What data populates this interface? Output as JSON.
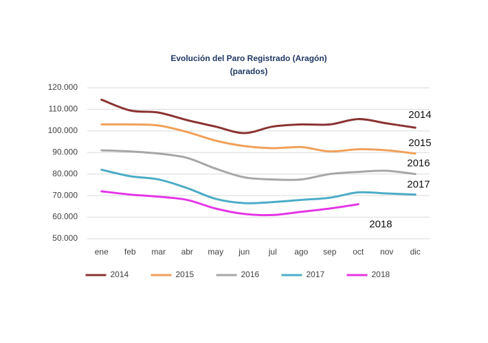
{
  "chart_data": {
    "type": "line",
    "title": "Evolución del Paro Registrado (Aragón)",
    "subtitle": "(parados)",
    "categories": [
      "ene",
      "feb",
      "mar",
      "abr",
      "may",
      "jun",
      "jul",
      "ago",
      "sep",
      "oct",
      "nov",
      "dic"
    ],
    "series": [
      {
        "name": "2014",
        "color": "#8b3232",
        "values": [
          114500,
          109500,
          108500,
          105000,
          102000,
          99000,
          102000,
          103000,
          103000,
          105500,
          103500,
          101500
        ]
      },
      {
        "name": "2015",
        "color": "#f0a05a",
        "values": [
          103000,
          103000,
          102500,
          99500,
          95500,
          93000,
          92000,
          92500,
          90500,
          91500,
          91000,
          89500
        ]
      },
      {
        "name": "2016",
        "color": "#a6a6a6",
        "values": [
          91000,
          90500,
          89500,
          87500,
          82500,
          78500,
          77500,
          77500,
          80000,
          81000,
          81500,
          80000
        ]
      },
      {
        "name": "2017",
        "color": "#4bacc6",
        "values": [
          82000,
          79000,
          77500,
          73500,
          68500,
          66500,
          67000,
          68000,
          69000,
          71500,
          71000,
          70500
        ]
      },
      {
        "name": "2018",
        "color": "#e535e5",
        "values": [
          72000,
          70500,
          69500,
          68000,
          64000,
          61500,
          61000,
          62500,
          64000,
          66000,
          null,
          null
        ]
      }
    ],
    "ylim": [
      50000,
      120000
    ],
    "yticks": [
      {
        "value": 50000,
        "label": "50.000"
      },
      {
        "value": 60000,
        "label": "60.000"
      },
      {
        "value": 70000,
        "label": "70.000"
      },
      {
        "value": 80000,
        "label": "80.000"
      },
      {
        "value": 90000,
        "label": "90.000"
      },
      {
        "value": 100000,
        "label": "100.000"
      },
      {
        "value": 110000,
        "label": "110.000"
      },
      {
        "value": 120000,
        "label": "120.000"
      }
    ],
    "grid": true,
    "legend": "bottom"
  }
}
